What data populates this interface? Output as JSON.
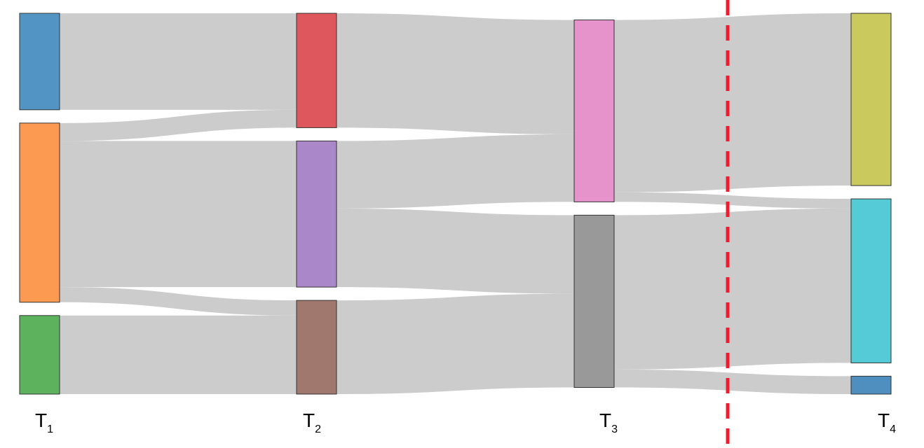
{
  "diagram": {
    "type": "sankey",
    "link_color": "#cccccc",
    "node_stroke": "#333333",
    "divider": {
      "color": "#ee1c2e",
      "style": "dashed",
      "between_stages": [
        "T3",
        "T4"
      ]
    },
    "stages": [
      {
        "id": "T1",
        "main": "T",
        "sub": "1"
      },
      {
        "id": "T2",
        "main": "T",
        "sub": "2"
      },
      {
        "id": "T3",
        "main": "T",
        "sub": "3"
      },
      {
        "id": "T4",
        "main": "T",
        "sub": "4"
      }
    ],
    "nodes": [
      {
        "id": "a",
        "stage": 0,
        "value": 7.0,
        "color": "#5295c4"
      },
      {
        "id": "b",
        "stage": 0,
        "value": 13.0,
        "color": "#fd9a51"
      },
      {
        "id": "c",
        "stage": 0,
        "value": 5.7,
        "color": "#5cb25d"
      },
      {
        "id": "d",
        "stage": 1,
        "value": 8.3,
        "color": "#dd575d"
      },
      {
        "id": "e",
        "stage": 1,
        "value": 10.6,
        "color": "#aa87c8"
      },
      {
        "id": "f",
        "stage": 1,
        "value": 6.8,
        "color": "#a0786e"
      },
      {
        "id": "g",
        "stage": 2,
        "value": 13.2,
        "color": "#e693cb"
      },
      {
        "id": "h",
        "stage": 2,
        "value": 12.5,
        "color": "#999999"
      },
      {
        "id": "i",
        "stage": 3,
        "value": 12.5,
        "color": "#c9c95d"
      },
      {
        "id": "j",
        "stage": 3,
        "value": 11.9,
        "color": "#54cbd6"
      },
      {
        "id": "k",
        "stage": 3,
        "value": 1.3,
        "color": "#4e8fc0"
      }
    ],
    "links": [
      {
        "source": "a",
        "target": "d",
        "value": 7.0
      },
      {
        "source": "b",
        "target": "d",
        "value": 1.3
      },
      {
        "source": "b",
        "target": "e",
        "value": 10.6
      },
      {
        "source": "b",
        "target": "f",
        "value": 1.1
      },
      {
        "source": "c",
        "target": "f",
        "value": 5.7
      },
      {
        "source": "d",
        "target": "g",
        "value": 8.3
      },
      {
        "source": "e",
        "target": "g",
        "value": 4.9
      },
      {
        "source": "e",
        "target": "h",
        "value": 5.7
      },
      {
        "source": "f",
        "target": "h",
        "value": 6.8
      },
      {
        "source": "g",
        "target": "i",
        "value": 12.5
      },
      {
        "source": "g",
        "target": "j",
        "value": 0.7
      },
      {
        "source": "h",
        "target": "j",
        "value": 11.2
      },
      {
        "source": "h",
        "target": "k",
        "value": 1.3
      }
    ]
  }
}
